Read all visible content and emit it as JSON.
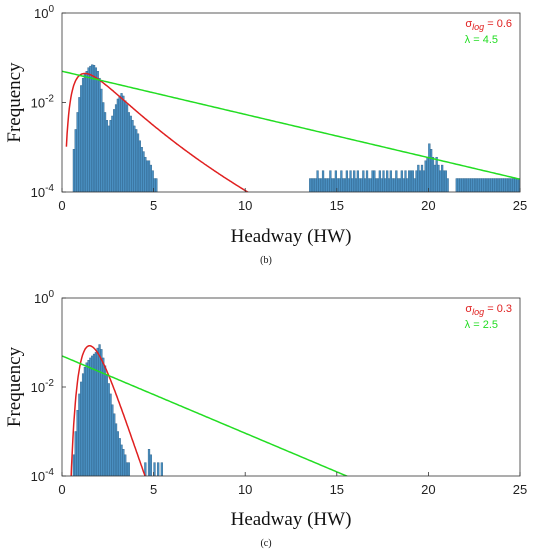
{
  "chart_data": [
    {
      "id": "b",
      "type": "bar",
      "caption": "(b)",
      "xlabel": "Headway (HW)",
      "ylabel": "Frequency",
      "xlim": [
        0,
        25
      ],
      "ylim": [
        0.0001,
        1
      ],
      "yscale": "log",
      "grid": false,
      "legend_position": "top-right",
      "xticks": [
        "0",
        "5",
        "10",
        "15",
        "20",
        "25"
      ],
      "yticks": [
        {
          "base": "10",
          "exp": "-4",
          "value": 0.0001
        },
        {
          "base": "10",
          "exp": "-2",
          "value": 0.01
        },
        {
          "base": "10",
          "exp": "0",
          "value": 1
        }
      ],
      "bar_color": "#4a90c2",
      "bin_width": 0.1,
      "bins": [
        {
          "x": 0.5,
          "y": 0.0001
        },
        {
          "x": 0.6,
          "y": 0.0009
        },
        {
          "x": 0.7,
          "y": 0.0025
        },
        {
          "x": 0.8,
          "y": 0.006
        },
        {
          "x": 0.9,
          "y": 0.013
        },
        {
          "x": 1.0,
          "y": 0.024
        },
        {
          "x": 1.1,
          "y": 0.035
        },
        {
          "x": 1.2,
          "y": 0.045
        },
        {
          "x": 1.3,
          "y": 0.05
        },
        {
          "x": 1.4,
          "y": 0.06
        },
        {
          "x": 1.5,
          "y": 0.065
        },
        {
          "x": 1.6,
          "y": 0.07
        },
        {
          "x": 1.7,
          "y": 0.068
        },
        {
          "x": 1.8,
          "y": 0.06
        },
        {
          "x": 1.9,
          "y": 0.05
        },
        {
          "x": 2.0,
          "y": 0.035
        },
        {
          "x": 2.1,
          "y": 0.02
        },
        {
          "x": 2.2,
          "y": 0.01
        },
        {
          "x": 2.3,
          "y": 0.006
        },
        {
          "x": 2.4,
          "y": 0.004
        },
        {
          "x": 2.5,
          "y": 0.003
        },
        {
          "x": 2.6,
          "y": 0.004
        },
        {
          "x": 2.7,
          "y": 0.005
        },
        {
          "x": 2.8,
          "y": 0.007
        },
        {
          "x": 2.9,
          "y": 0.009
        },
        {
          "x": 3.0,
          "y": 0.012
        },
        {
          "x": 3.1,
          "y": 0.014
        },
        {
          "x": 3.2,
          "y": 0.016
        },
        {
          "x": 3.3,
          "y": 0.014
        },
        {
          "x": 3.4,
          "y": 0.011
        },
        {
          "x": 3.5,
          "y": 0.009
        },
        {
          "x": 3.6,
          "y": 0.006
        },
        {
          "x": 3.7,
          "y": 0.005
        },
        {
          "x": 3.8,
          "y": 0.004
        },
        {
          "x": 3.9,
          "y": 0.003
        },
        {
          "x": 4.0,
          "y": 0.0025
        },
        {
          "x": 4.1,
          "y": 0.002
        },
        {
          "x": 4.2,
          "y": 0.0014
        },
        {
          "x": 4.3,
          "y": 0.001
        },
        {
          "x": 4.4,
          "y": 0.0008
        },
        {
          "x": 4.5,
          "y": 0.0006
        },
        {
          "x": 4.6,
          "y": 0.0005
        },
        {
          "x": 4.7,
          "y": 0.0005
        },
        {
          "x": 4.8,
          "y": 0.0004
        },
        {
          "x": 4.9,
          "y": 0.0003
        },
        {
          "x": 5.0,
          "y": 0.0002
        },
        {
          "x": 5.1,
          "y": 0.0002
        },
        {
          "x": 13.5,
          "y": 0.0002
        },
        {
          "x": 13.6,
          "y": 0.0002
        },
        {
          "x": 13.7,
          "y": 0.0002
        },
        {
          "x": 13.8,
          "y": 0.0002
        },
        {
          "x": 13.9,
          "y": 0.0003
        },
        {
          "x": 14.0,
          "y": 0.0002
        },
        {
          "x": 14.1,
          "y": 0.0002
        },
        {
          "x": 14.2,
          "y": 0.0003
        },
        {
          "x": 14.3,
          "y": 0.0002
        },
        {
          "x": 14.4,
          "y": 0.0002
        },
        {
          "x": 14.5,
          "y": 0.0002
        },
        {
          "x": 14.6,
          "y": 0.0003
        },
        {
          "x": 14.7,
          "y": 0.0002
        },
        {
          "x": 14.8,
          "y": 0.0002
        },
        {
          "x": 14.9,
          "y": 0.0003
        },
        {
          "x": 15.0,
          "y": 0.0002
        },
        {
          "x": 15.1,
          "y": 0.0002
        },
        {
          "x": 15.2,
          "y": 0.0003
        },
        {
          "x": 15.3,
          "y": 0.0002
        },
        {
          "x": 15.4,
          "y": 0.0002
        },
        {
          "x": 15.5,
          "y": 0.0003
        },
        {
          "x": 15.6,
          "y": 0.0002
        },
        {
          "x": 15.7,
          "y": 0.0003
        },
        {
          "x": 15.8,
          "y": 0.0002
        },
        {
          "x": 15.9,
          "y": 0.0003
        },
        {
          "x": 16.0,
          "y": 0.0002
        },
        {
          "x": 16.1,
          "y": 0.0003
        },
        {
          "x": 16.2,
          "y": 0.0002
        },
        {
          "x": 16.3,
          "y": 0.0002
        },
        {
          "x": 16.4,
          "y": 0.0003
        },
        {
          "x": 16.5,
          "y": 0.0002
        },
        {
          "x": 16.6,
          "y": 0.0003
        },
        {
          "x": 16.7,
          "y": 0.0002
        },
        {
          "x": 16.8,
          "y": 0.0002
        },
        {
          "x": 16.9,
          "y": 0.0003
        },
        {
          "x": 17.0,
          "y": 0.0003
        },
        {
          "x": 17.1,
          "y": 0.0002
        },
        {
          "x": 17.2,
          "y": 0.0002
        },
        {
          "x": 17.3,
          "y": 0.0003
        },
        {
          "x": 17.4,
          "y": 0.0002
        },
        {
          "x": 17.5,
          "y": 0.0003
        },
        {
          "x": 17.6,
          "y": 0.0002
        },
        {
          "x": 17.7,
          "y": 0.0003
        },
        {
          "x": 17.8,
          "y": 0.0002
        },
        {
          "x": 17.9,
          "y": 0.0003
        },
        {
          "x": 18.0,
          "y": 0.0002
        },
        {
          "x": 18.1,
          "y": 0.0002
        },
        {
          "x": 18.2,
          "y": 0.0003
        },
        {
          "x": 18.3,
          "y": 0.0002
        },
        {
          "x": 18.4,
          "y": 0.0002
        },
        {
          "x": 18.5,
          "y": 0.0003
        },
        {
          "x": 18.6,
          "y": 0.0002
        },
        {
          "x": 18.7,
          "y": 0.0003
        },
        {
          "x": 18.8,
          "y": 0.0002
        },
        {
          "x": 18.9,
          "y": 0.0003
        },
        {
          "x": 19.0,
          "y": 0.0003
        },
        {
          "x": 19.1,
          "y": 0.0003
        },
        {
          "x": 19.2,
          "y": 0.0002
        },
        {
          "x": 19.3,
          "y": 0.0003
        },
        {
          "x": 19.4,
          "y": 0.0004
        },
        {
          "x": 19.5,
          "y": 0.0003
        },
        {
          "x": 19.6,
          "y": 0.0004
        },
        {
          "x": 19.7,
          "y": 0.0003
        },
        {
          "x": 19.8,
          "y": 0.0005
        },
        {
          "x": 19.9,
          "y": 0.0006
        },
        {
          "x": 20.0,
          "y": 0.0012
        },
        {
          "x": 20.1,
          "y": 0.0009
        },
        {
          "x": 20.2,
          "y": 0.0006
        },
        {
          "x": 20.3,
          "y": 0.0004
        },
        {
          "x": 20.4,
          "y": 0.0006
        },
        {
          "x": 20.5,
          "y": 0.0004
        },
        {
          "x": 20.6,
          "y": 0.0003
        },
        {
          "x": 20.7,
          "y": 0.0004
        },
        {
          "x": 20.8,
          "y": 0.0003
        },
        {
          "x": 20.9,
          "y": 0.0003
        },
        {
          "x": 21.0,
          "y": 0.0002
        },
        {
          "x": 21.5,
          "y": 0.0002
        },
        {
          "x": 21.6,
          "y": 0.0002
        },
        {
          "x": 21.7,
          "y": 0.0002
        },
        {
          "x": 21.8,
          "y": 0.0002
        },
        {
          "x": 21.9,
          "y": 0.0002
        },
        {
          "x": 22.0,
          "y": 0.0002
        },
        {
          "x": 22.1,
          "y": 0.0002
        },
        {
          "x": 22.2,
          "y": 0.0002
        },
        {
          "x": 22.3,
          "y": 0.0002
        },
        {
          "x": 22.4,
          "y": 0.0002
        },
        {
          "x": 22.5,
          "y": 0.0002
        },
        {
          "x": 22.6,
          "y": 0.0002
        },
        {
          "x": 22.7,
          "y": 0.0002
        },
        {
          "x": 22.8,
          "y": 0.0002
        },
        {
          "x": 22.9,
          "y": 0.0002
        },
        {
          "x": 23.0,
          "y": 0.0002
        },
        {
          "x": 23.1,
          "y": 0.0002
        },
        {
          "x": 23.2,
          "y": 0.0002
        },
        {
          "x": 23.3,
          "y": 0.0002
        },
        {
          "x": 23.4,
          "y": 0.0002
        },
        {
          "x": 23.5,
          "y": 0.0002
        },
        {
          "x": 23.6,
          "y": 0.0002
        },
        {
          "x": 23.7,
          "y": 0.0002
        },
        {
          "x": 23.8,
          "y": 0.0002
        },
        {
          "x": 23.9,
          "y": 0.0002
        },
        {
          "x": 24.0,
          "y": 0.0002
        },
        {
          "x": 24.1,
          "y": 0.0002
        },
        {
          "x": 24.2,
          "y": 0.0002
        },
        {
          "x": 24.3,
          "y": 0.0002
        },
        {
          "x": 24.4,
          "y": 0.0002
        },
        {
          "x": 24.5,
          "y": 0.0002
        },
        {
          "x": 24.6,
          "y": 0.0002
        },
        {
          "x": 24.7,
          "y": 0.0002
        },
        {
          "x": 24.8,
          "y": 0.0002
        },
        {
          "x": 24.9,
          "y": 0.0002
        }
      ],
      "lognormal": {
        "label_prefix": "σ",
        "label_sub": "log",
        "label_suffix": " = 0.6",
        "sigma": 0.6,
        "mu": 0.58,
        "color": "#e02020"
      },
      "exponential": {
        "label": "λ = 4.5",
        "lambda": 4.5,
        "color": "#22dd22"
      }
    },
    {
      "id": "c",
      "type": "bar",
      "caption": "(c)",
      "xlabel": "Headway (HW)",
      "ylabel": "Frequency",
      "xlim": [
        0,
        25
      ],
      "ylim": [
        0.0001,
        1
      ],
      "yscale": "log",
      "grid": false,
      "legend_position": "top-right",
      "xticks": [
        "0",
        "5",
        "10",
        "15",
        "20",
        "25"
      ],
      "yticks": [
        {
          "base": "10",
          "exp": "-4",
          "value": 0.0001
        },
        {
          "base": "10",
          "exp": "-2",
          "value": 0.01
        },
        {
          "base": "10",
          "exp": "0",
          "value": 1
        }
      ],
      "bar_color": "#4a90c2",
      "bin_width": 0.1,
      "bins": [
        {
          "x": 0.6,
          "y": 0.0003
        },
        {
          "x": 0.7,
          "y": 0.001
        },
        {
          "x": 0.8,
          "y": 0.003
        },
        {
          "x": 0.9,
          "y": 0.007
        },
        {
          "x": 1.0,
          "y": 0.013
        },
        {
          "x": 1.1,
          "y": 0.02
        },
        {
          "x": 1.2,
          "y": 0.028
        },
        {
          "x": 1.3,
          "y": 0.035
        },
        {
          "x": 1.4,
          "y": 0.04
        },
        {
          "x": 1.5,
          "y": 0.045
        },
        {
          "x": 1.6,
          "y": 0.05
        },
        {
          "x": 1.7,
          "y": 0.055
        },
        {
          "x": 1.8,
          "y": 0.06
        },
        {
          "x": 1.9,
          "y": 0.075
        },
        {
          "x": 2.0,
          "y": 0.09
        },
        {
          "x": 2.1,
          "y": 0.07
        },
        {
          "x": 2.2,
          "y": 0.045
        },
        {
          "x": 2.3,
          "y": 0.03
        },
        {
          "x": 2.4,
          "y": 0.018
        },
        {
          "x": 2.5,
          "y": 0.012
        },
        {
          "x": 2.6,
          "y": 0.007
        },
        {
          "x": 2.7,
          "y": 0.004
        },
        {
          "x": 2.8,
          "y": 0.0025
        },
        {
          "x": 2.9,
          "y": 0.0015
        },
        {
          "x": 3.0,
          "y": 0.001
        },
        {
          "x": 3.1,
          "y": 0.0007
        },
        {
          "x": 3.2,
          "y": 0.0005
        },
        {
          "x": 3.3,
          "y": 0.0004
        },
        {
          "x": 3.4,
          "y": 0.0003
        },
        {
          "x": 3.5,
          "y": 0.0002
        },
        {
          "x": 3.6,
          "y": 0.0002
        },
        {
          "x": 4.5,
          "y": 0.0002
        },
        {
          "x": 4.7,
          "y": 0.0004
        },
        {
          "x": 4.8,
          "y": 0.0003
        },
        {
          "x": 5.0,
          "y": 0.0002
        },
        {
          "x": 5.2,
          "y": 0.0002
        },
        {
          "x": 5.4,
          "y": 0.0002
        }
      ],
      "lognormal": {
        "label_prefix": "σ",
        "label_sub": "log",
        "label_suffix": " = 0.3",
        "sigma": 0.3,
        "mu": 0.5,
        "color": "#e02020"
      },
      "exponential": {
        "label": "λ = 2.5",
        "lambda": 2.5,
        "color": "#22dd22"
      }
    }
  ]
}
